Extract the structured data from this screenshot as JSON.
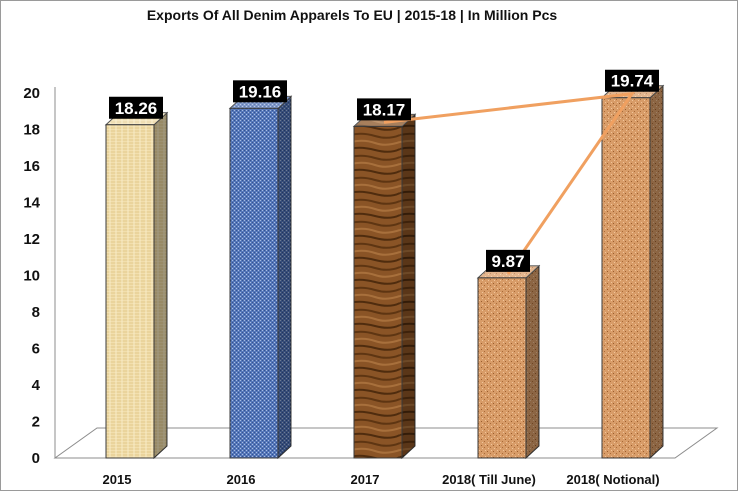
{
  "chart_data": {
    "type": "bar",
    "title": "Exports Of All Denim Apparels To EU | 2015-18 | In Million Pcs",
    "categories": [
      "2015",
      "2016",
      "2017",
      "2018( Till June)",
      "2018( Notional)"
    ],
    "values": [
      18.26,
      19.16,
      18.17,
      9.87,
      19.74
    ],
    "data_labels": [
      "18.26",
      "19.16",
      "18.17",
      "9.87",
      "19.74"
    ],
    "ylim": [
      0,
      20
    ],
    "yticks": [
      "0",
      "2",
      "4",
      "6",
      "8",
      "10",
      "12",
      "14",
      "16",
      "18",
      "20"
    ],
    "grid": false,
    "legend": "none",
    "style": "3d-column",
    "bar_colors": [
      "#f0dca8",
      "#4f73b8",
      "#7a4a1f",
      "#d49a66",
      "#d49a66"
    ],
    "trend_line": {
      "color": "#f0a060",
      "points": [
        "18.17",
        "19.74",
        "9.87"
      ]
    }
  }
}
